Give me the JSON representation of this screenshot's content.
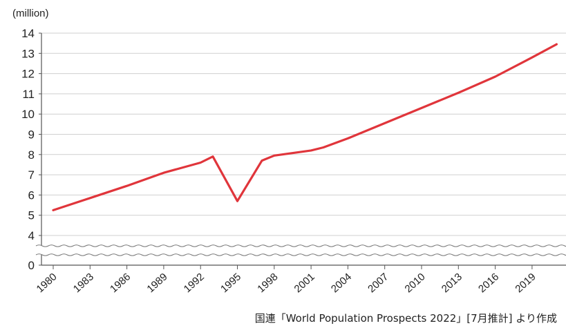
{
  "chart_data": {
    "type": "line",
    "ylabel": "(million)",
    "ylim_upper": [
      4,
      14
    ],
    "ylim_lower_value": 0,
    "axis_break": true,
    "grid": "horizontal",
    "x_ticks": [
      "1980",
      "1983",
      "1986",
      "1989",
      "1992",
      "1995",
      "1998",
      "2001",
      "2004",
      "2007",
      "2010",
      "2013",
      "2016",
      "2019"
    ],
    "y_ticks": [
      "0",
      "4",
      "5",
      "6",
      "7",
      "8",
      "9",
      "10",
      "11",
      "12",
      "13",
      "14"
    ],
    "series": [
      {
        "color": "#e0353b",
        "x": [
          1980,
          1983,
          1986,
          1989,
          1992,
          1993,
          1995,
          1997,
          1998,
          2001,
          2002,
          2004,
          2007,
          2010,
          2013,
          2016,
          2019,
          2021
        ],
        "y": [
          5.25,
          5.85,
          6.45,
          7.1,
          7.6,
          7.9,
          5.7,
          7.7,
          7.95,
          8.2,
          8.35,
          8.8,
          9.55,
          10.3,
          11.05,
          11.85,
          12.8,
          13.45
        ]
      }
    ],
    "source": "国連「World Population Prospects 2022」[7月推計] より作成"
  }
}
